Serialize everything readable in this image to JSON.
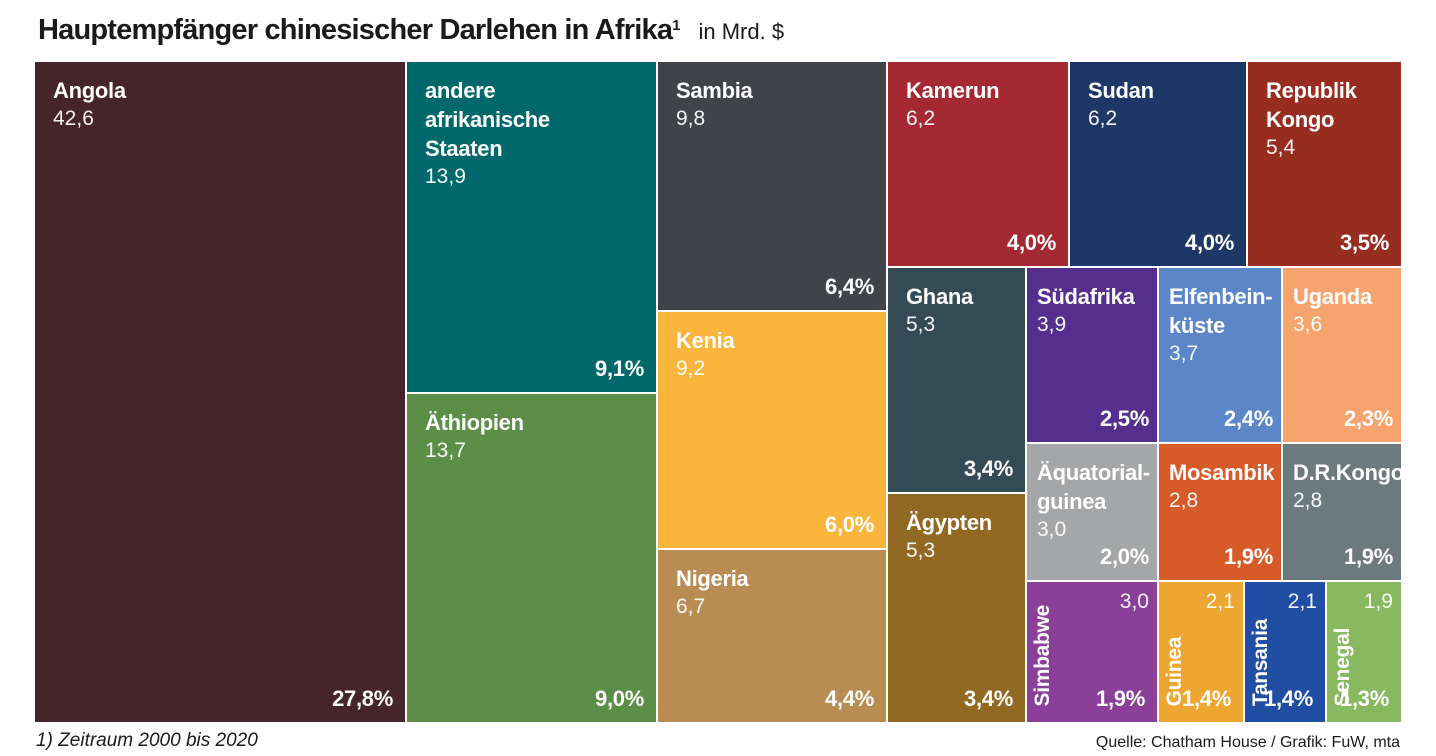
{
  "title": "Hauptempfänger chinesischer Darlehen in Afrika",
  "title_footnote_mark": "1",
  "unit": "in Mrd. $",
  "footnote": "1) Zeitraum 2000 bis 2020",
  "source": "Quelle: Chatham House / Grafik: FuW, mta",
  "chart_data": {
    "type": "treemap",
    "title": "Hauptempfänger chinesischer Darlehen in Afrika",
    "unit": "in Mrd. $",
    "items": [
      {
        "name": "Angola",
        "value": "42,6",
        "share": "27,8%",
        "color": "#45242a"
      },
      {
        "name": "andere afrikanische Staaten",
        "value": "13,9",
        "share": "9,1%",
        "color": "#00676a"
      },
      {
        "name": "Äthiopien",
        "value": "13,7",
        "share": "9,0%",
        "color": "#5b8e47"
      },
      {
        "name": "Sambia",
        "value": "9,8",
        "share": "6,4%",
        "color": "#404448"
      },
      {
        "name": "Kenia",
        "value": "9,2",
        "share": "6,0%",
        "color": "#f9b53c"
      },
      {
        "name": "Nigeria",
        "value": "6,7",
        "share": "4,4%",
        "color": "#b98c53"
      },
      {
        "name": "Kamerun",
        "value": "6,2",
        "share": "4,0%",
        "color": "#a52932"
      },
      {
        "name": "Sudan",
        "value": "6,2",
        "share": "4,0%",
        "color": "#1d3766"
      },
      {
        "name": "Republik Kongo",
        "value": "5,4",
        "share": "3,5%",
        "color": "#972d20"
      },
      {
        "name": "Ghana",
        "value": "5,3",
        "share": "3,4%",
        "color": "#344a55"
      },
      {
        "name": "Ägypten",
        "value": "5,3",
        "share": "3,4%",
        "color": "#926922"
      },
      {
        "name": "Südafrika",
        "value": "3,9",
        "share": "2,5%",
        "color": "#562e8d"
      },
      {
        "name": "Elfenbeinküste",
        "value": "3,7",
        "share": "2,4%",
        "color": "#5b87c8"
      },
      {
        "name": "Uganda",
        "value": "3,6",
        "share": "2,3%",
        "color": "#f6a36d"
      },
      {
        "name": "Äquatorialguinea",
        "value": "3,0",
        "share": "2,0%",
        "color": "#a5a6a7"
      },
      {
        "name": "Mosambik",
        "value": "2,8",
        "share": "1,9%",
        "color": "#d75a29"
      },
      {
        "name": "D.R.Kongo",
        "value": "2,8",
        "share": "1,9%",
        "color": "#6c7a80"
      },
      {
        "name": "Simbabwe",
        "value": "3,0",
        "share": "1,9%",
        "color": "#8a3f98"
      },
      {
        "name": "Guinea",
        "value": "2,1",
        "share": "1,4%",
        "color": "#eca631"
      },
      {
        "name": "Tansania",
        "value": "2,1",
        "share": "1,4%",
        "color": "#1f4ea3"
      },
      {
        "name": "Senegal",
        "value": "1,9",
        "share": "1,3%",
        "color": "#88b85f"
      }
    ]
  }
}
